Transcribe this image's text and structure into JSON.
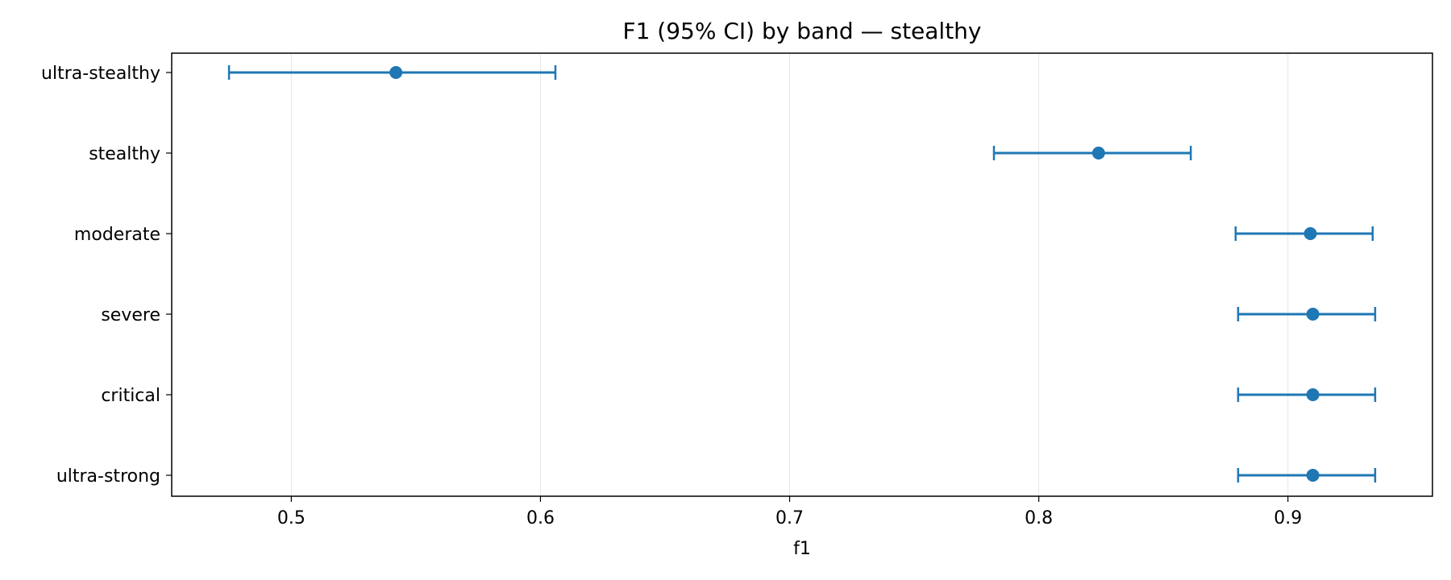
{
  "chart_data": {
    "type": "errorbar",
    "title": "F1 (95% CI) by band — stealthy",
    "xlabel": "f1",
    "ylabel": "",
    "xlim": [
      0.452,
      0.958
    ],
    "xticks": [
      0.5,
      0.6,
      0.7,
      0.8,
      0.9
    ],
    "xtick_labels": [
      "0.5",
      "0.6",
      "0.7",
      "0.8",
      "0.9"
    ],
    "grid": "vertical",
    "color": "#1f77b4",
    "categories": [
      "ultra-stealthy",
      "stealthy",
      "moderate",
      "severe",
      "critical",
      "ultra-strong"
    ],
    "values": [
      0.542,
      0.824,
      0.909,
      0.91,
      0.91,
      0.91
    ],
    "ci_low": [
      0.475,
      0.782,
      0.879,
      0.88,
      0.88,
      0.88
    ],
    "ci_high": [
      0.606,
      0.861,
      0.934,
      0.935,
      0.935,
      0.935
    ]
  }
}
